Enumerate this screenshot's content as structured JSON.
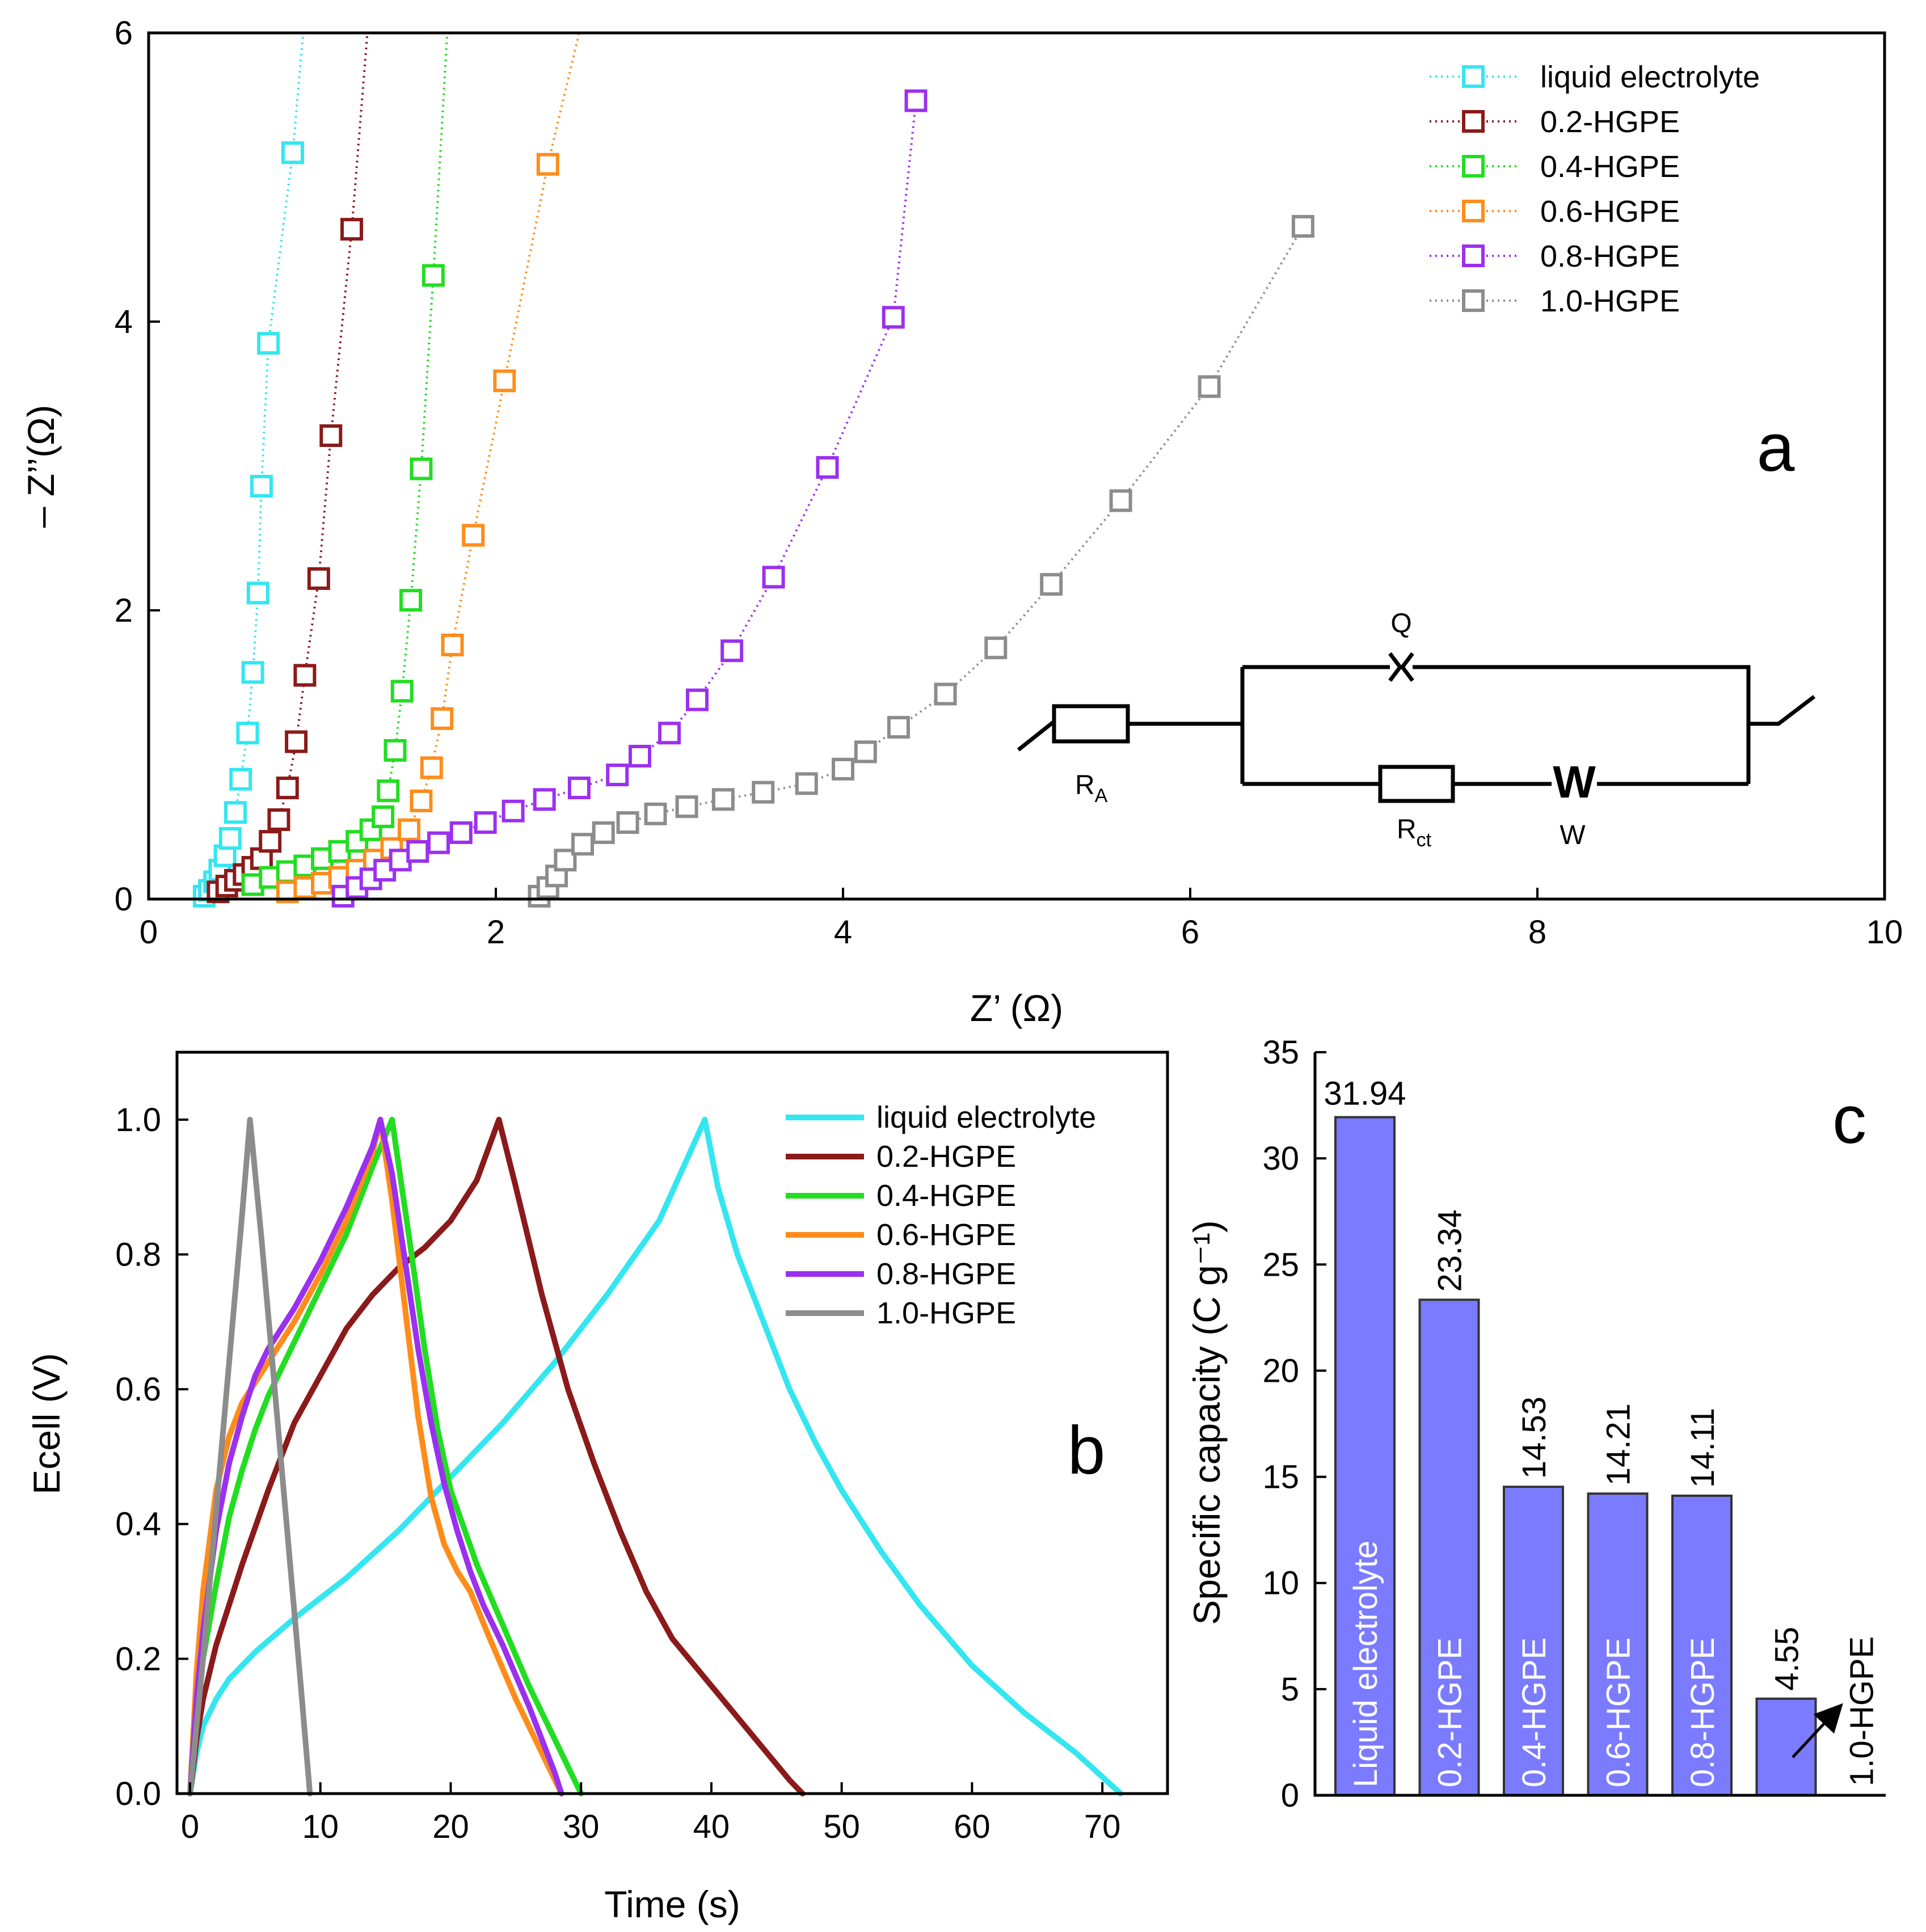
{
  "chart_data": [
    {
      "id": "a",
      "type": "scatter",
      "panel_label": "a",
      "xlabel": "Z’ (Ω)",
      "ylabel": "– Z’’(Ω)",
      "xlim": [
        0,
        10
      ],
      "ylim": [
        0,
        6
      ],
      "xticks": [
        0,
        2,
        4,
        6,
        8,
        10
      ],
      "yticks": [
        0,
        2,
        4,
        6
      ],
      "xticklabels": [
        "0",
        "2",
        "4",
        "6",
        "8",
        "10"
      ],
      "yticklabels": [
        "0",
        "2",
        "4",
        "6"
      ],
      "legend_position": "top-right",
      "series": [
        {
          "name": "liquid electrolyte",
          "color": "#33e6f0",
          "x": [
            0.32,
            0.35,
            0.38,
            0.41,
            0.44,
            0.47,
            0.5,
            0.53,
            0.57,
            0.6,
            0.63,
            0.65,
            0.69,
            0.83,
            0.89
          ],
          "y": [
            0.02,
            0.06,
            0.12,
            0.2,
            0.3,
            0.42,
            0.6,
            0.83,
            1.15,
            1.57,
            2.12,
            2.86,
            3.85,
            5.17,
            6.0
          ]
        },
        {
          "name": "0.2-HGPE",
          "color": "#8b1a1a",
          "x": [
            0.4,
            0.45,
            0.5,
            0.55,
            0.6,
            0.65,
            0.7,
            0.75,
            0.8,
            0.85,
            0.9,
            0.98,
            1.05,
            1.17,
            1.26
          ],
          "y": [
            0.05,
            0.09,
            0.13,
            0.17,
            0.22,
            0.28,
            0.4,
            0.55,
            0.77,
            1.09,
            1.55,
            2.22,
            3.21,
            4.64,
            6.0
          ]
        },
        {
          "name": "0.4-HGPE",
          "color": "#22dd22",
          "x": [
            0.6,
            0.7,
            0.8,
            0.9,
            1.0,
            1.1,
            1.2,
            1.28,
            1.35,
            1.38,
            1.42,
            1.46,
            1.51,
            1.57,
            1.64,
            1.72
          ],
          "y": [
            0.1,
            0.15,
            0.19,
            0.23,
            0.28,
            0.33,
            0.4,
            0.48,
            0.57,
            0.75,
            1.03,
            1.44,
            2.07,
            2.98,
            4.32,
            6.0
          ]
        },
        {
          "name": "0.6-HGPE",
          "color": "#ff8c1a",
          "x": [
            0.8,
            0.9,
            1.0,
            1.1,
            1.2,
            1.3,
            1.4,
            1.5,
            1.57,
            1.63,
            1.69,
            1.75,
            1.87,
            2.05,
            2.3,
            2.48
          ],
          "y": [
            0.05,
            0.08,
            0.11,
            0.15,
            0.2,
            0.27,
            0.35,
            0.48,
            0.68,
            0.91,
            1.25,
            1.76,
            2.52,
            3.59,
            5.09,
            6.0
          ]
        },
        {
          "name": "0.8-HGPE",
          "color": "#9b30f0",
          "x": [
            1.12,
            1.2,
            1.28,
            1.36,
            1.45,
            1.55,
            1.67,
            1.8,
            1.94,
            2.1,
            2.28,
            2.48,
            2.7,
            2.83,
            3.0,
            3.16,
            3.36,
            3.6,
            3.91,
            4.29,
            4.42
          ],
          "y": [
            0.02,
            0.08,
            0.14,
            0.2,
            0.27,
            0.33,
            0.39,
            0.46,
            0.53,
            0.61,
            0.69,
            0.77,
            0.86,
            0.99,
            1.15,
            1.38,
            1.72,
            2.23,
            2.99,
            4.03,
            5.53
          ]
        },
        {
          "name": "1.0-HGPE",
          "color": "#8c8c8c",
          "x": [
            2.25,
            2.3,
            2.35,
            2.4,
            2.5,
            2.62,
            2.76,
            2.92,
            3.1,
            3.31,
            3.54,
            3.79,
            4.0,
            4.13,
            4.32,
            4.59,
            4.88,
            5.2,
            5.6,
            6.11,
            6.65
          ],
          "y": [
            0.02,
            0.08,
            0.16,
            0.27,
            0.38,
            0.46,
            0.53,
            0.59,
            0.64,
            0.69,
            0.74,
            0.8,
            0.9,
            1.02,
            1.19,
            1.42,
            1.74,
            2.18,
            2.76,
            3.55,
            4.66
          ]
        }
      ],
      "inset_circuit": {
        "elements": [
          "R_A",
          "Q",
          "R_ct",
          "W"
        ],
        "labels": {
          "ra_main": "R",
          "ra_sub": "A",
          "q": "Q",
          "rct_main": "R",
          "rct_sub": "ct",
          "w_symbol": "W",
          "w": "W"
        }
      }
    },
    {
      "id": "b",
      "type": "line",
      "panel_label": "b",
      "xlabel": "Time (s)",
      "ylabel": "Ecell (V)",
      "xlim": [
        -1,
        75
      ],
      "ylim": [
        0,
        1.1
      ],
      "xticks": [
        0,
        10,
        20,
        30,
        40,
        50,
        60,
        70
      ],
      "yticks": [
        0.0,
        0.2,
        0.4,
        0.6,
        0.8,
        1.0
      ],
      "xticklabels": [
        "0",
        "10",
        "20",
        "30",
        "40",
        "50",
        "60",
        "70"
      ],
      "yticklabels": [
        "0.0",
        "0.2",
        "0.4",
        "0.6",
        "0.8",
        "1.0"
      ],
      "legend_position": "top-right",
      "series": [
        {
          "name": "liquid electrolyte",
          "color": "#33e6f0",
          "x": [
            0,
            0.5,
            1,
            2,
            3,
            5,
            8,
            12,
            16,
            20,
            24,
            28,
            32,
            36,
            39.5,
            40.5,
            42,
            44,
            46,
            48,
            50,
            53,
            56,
            60,
            64,
            68,
            71.4
          ],
          "y": [
            0,
            0.06,
            0.1,
            0.14,
            0.17,
            0.21,
            0.26,
            0.32,
            0.39,
            0.47,
            0.55,
            0.64,
            0.74,
            0.85,
            1.0,
            0.9,
            0.8,
            0.7,
            0.6,
            0.52,
            0.45,
            0.36,
            0.28,
            0.19,
            0.12,
            0.06,
            0
          ]
        },
        {
          "name": "0.2-HGPE",
          "color": "#8b1a1a",
          "x": [
            0,
            0.5,
            1,
            2,
            4,
            6,
            8,
            10,
            12,
            14,
            16,
            18,
            20,
            22,
            23.7,
            25,
            27,
            29,
            31,
            33,
            35,
            37,
            40,
            43,
            46,
            47
          ],
          "y": [
            0,
            0.08,
            0.14,
            0.22,
            0.34,
            0.45,
            0.55,
            0.62,
            0.69,
            0.74,
            0.78,
            0.81,
            0.85,
            0.91,
            1.0,
            0.9,
            0.74,
            0.6,
            0.49,
            0.39,
            0.3,
            0.23,
            0.16,
            0.09,
            0.02,
            0
          ]
        },
        {
          "name": "0.4-HGPE",
          "color": "#22dd22",
          "x": [
            0,
            0.5,
            1,
            2,
            3,
            4,
            5,
            6,
            7,
            8,
            10,
            12,
            14,
            15.5,
            17,
            18,
            19,
            20,
            22,
            24,
            26,
            28,
            29,
            30
          ],
          "y": [
            0,
            0.12,
            0.2,
            0.31,
            0.41,
            0.48,
            0.54,
            0.59,
            0.63,
            0.67,
            0.75,
            0.83,
            0.93,
            1.0,
            0.8,
            0.66,
            0.54,
            0.45,
            0.34,
            0.25,
            0.16,
            0.08,
            0.04,
            0
          ]
        },
        {
          "name": "0.6-HGPE",
          "color": "#ff8c1a",
          "x": [
            0,
            0.5,
            1,
            2,
            3,
            4,
            5,
            6,
            7,
            8,
            10,
            12,
            14,
            14.6,
            15.5,
            16.5,
            17.5,
            18.5,
            19.5,
            20.5,
            21.5,
            23,
            25,
            27,
            28.5
          ],
          "y": [
            0,
            0.18,
            0.3,
            0.45,
            0.53,
            0.58,
            0.61,
            0.64,
            0.67,
            0.7,
            0.77,
            0.85,
            0.95,
            1.0,
            0.88,
            0.72,
            0.56,
            0.44,
            0.37,
            0.33,
            0.3,
            0.23,
            0.14,
            0.06,
            0
          ]
        },
        {
          "name": "0.8-HGPE",
          "color": "#9b30f0",
          "x": [
            0,
            0.5,
            1,
            2,
            3,
            4,
            5,
            6,
            7,
            8,
            10,
            12,
            14,
            14.6,
            15.5,
            16.5,
            17.5,
            18.5,
            19.5,
            20.5,
            21.5,
            22.5,
            24,
            26,
            28,
            28.5
          ],
          "y": [
            0,
            0.14,
            0.24,
            0.39,
            0.49,
            0.56,
            0.62,
            0.66,
            0.69,
            0.72,
            0.79,
            0.87,
            0.96,
            1.0,
            0.92,
            0.79,
            0.66,
            0.55,
            0.46,
            0.39,
            0.33,
            0.28,
            0.22,
            0.13,
            0.03,
            0
          ]
        },
        {
          "name": "1.0-HGPE",
          "color": "#8c8c8c",
          "x": [
            0,
            1,
            2,
            3,
            4,
            4.6,
            5.5,
            6.5,
            7.5,
            8.5,
            9.2
          ],
          "y": [
            0,
            0.2,
            0.42,
            0.64,
            0.86,
            1.0,
            0.82,
            0.6,
            0.38,
            0.16,
            0
          ]
        }
      ]
    },
    {
      "id": "c",
      "type": "bar",
      "panel_label": "c",
      "ylabel": "Specific capacity (C g⁻¹)",
      "ylim": [
        0,
        35
      ],
      "yticks": [
        0,
        5,
        10,
        15,
        20,
        25,
        30,
        35
      ],
      "yticklabels": [
        "0",
        "5",
        "10",
        "15",
        "20",
        "25",
        "30",
        "35"
      ],
      "bar_color": "#7b7bff",
      "categories": [
        "Liquid electrolyte",
        "0.2-HGPE",
        "0.4-HGPE",
        "0.6-HGPE",
        "0.8-HGPE",
        "1.0-HGPE"
      ],
      "values": [
        31.94,
        23.34,
        14.53,
        14.21,
        14.11,
        4.55
      ],
      "value_labels": [
        "31.94",
        "23.34",
        "14.53",
        "14.21",
        "14.11",
        "4.55"
      ]
    }
  ]
}
